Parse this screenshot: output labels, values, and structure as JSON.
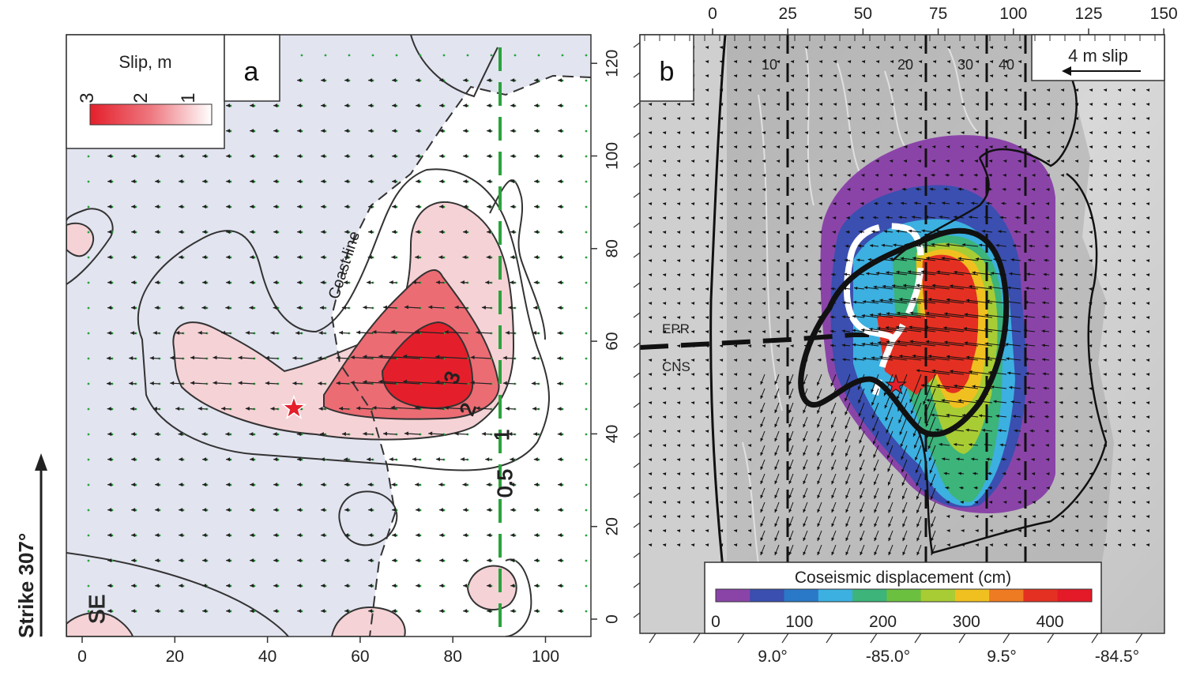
{
  "panel_a": {
    "letter": "a",
    "x_ticks": [
      "0",
      "20",
      "40",
      "60",
      "80",
      "100"
    ],
    "y_ticks": [
      "0",
      "20",
      "40",
      "60",
      "80",
      "100",
      "120"
    ],
    "legend": {
      "title": "Slip, m",
      "ticks": [
        "3",
        "2",
        "1"
      ]
    },
    "contour_labels": [
      "3",
      "2",
      "1",
      "0.5"
    ],
    "coast_line_label": "Coast line",
    "corner_label": "SE",
    "strike_label": "Strike 307°",
    "colors": {
      "background": "#e2e4f0",
      "slip_low": "#f5d2d6",
      "slip_mid": "#ec6c74",
      "slip_high": "#e41f2b",
      "trench_line": "#2aa33c"
    }
  },
  "panel_b": {
    "letter": "b",
    "top_ticks": [
      "0",
      "25",
      "50",
      "75",
      "100",
      "125",
      "150"
    ],
    "bottom_ticks": [
      "9.0°",
      "-85.0°",
      "9.5°",
      "-84.5°"
    ],
    "distance_labels": [
      "10",
      "20",
      "30",
      "40"
    ],
    "scale_label": "4 m slip",
    "epr_label": "EPR",
    "cns_label": "CNS",
    "colorbar": {
      "title": "Coseismic displacement (cm)",
      "ticks": [
        "0",
        "100",
        "200",
        "300",
        "400"
      ],
      "colors": [
        "#8a44a8",
        "#3a4fb0",
        "#2a78c8",
        "#3cb0e0",
        "#3cb47a",
        "#6cc040",
        "#a8cc34",
        "#f0c020",
        "#ee7a22",
        "#e43022",
        "#e41a28"
      ]
    }
  }
}
